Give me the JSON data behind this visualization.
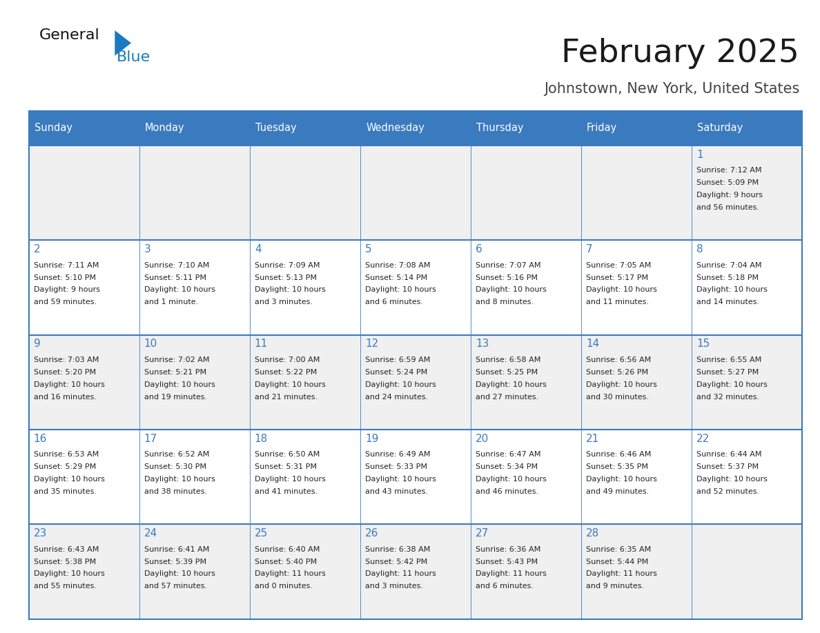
{
  "title": "February 2025",
  "subtitle": "Johnstown, New York, United States",
  "header_bg": "#3a7abf",
  "header_text_color": "#ffffff",
  "cell_bg_light": "#f0f0f0",
  "cell_bg_white": "#ffffff",
  "border_color": "#3a7abf",
  "day_number_color": "#3a7abf",
  "info_text_color": "#222222",
  "title_color": "#1a1a1a",
  "subtitle_color": "#444444",
  "days_of_week": [
    "Sunday",
    "Monday",
    "Tuesday",
    "Wednesday",
    "Thursday",
    "Friday",
    "Saturday"
  ],
  "weeks": [
    [
      {
        "day": null,
        "info": ""
      },
      {
        "day": null,
        "info": ""
      },
      {
        "day": null,
        "info": ""
      },
      {
        "day": null,
        "info": ""
      },
      {
        "day": null,
        "info": ""
      },
      {
        "day": null,
        "info": ""
      },
      {
        "day": 1,
        "info": "Sunrise: 7:12 AM\nSunset: 5:09 PM\nDaylight: 9 hours\nand 56 minutes."
      }
    ],
    [
      {
        "day": 2,
        "info": "Sunrise: 7:11 AM\nSunset: 5:10 PM\nDaylight: 9 hours\nand 59 minutes."
      },
      {
        "day": 3,
        "info": "Sunrise: 7:10 AM\nSunset: 5:11 PM\nDaylight: 10 hours\nand 1 minute."
      },
      {
        "day": 4,
        "info": "Sunrise: 7:09 AM\nSunset: 5:13 PM\nDaylight: 10 hours\nand 3 minutes."
      },
      {
        "day": 5,
        "info": "Sunrise: 7:08 AM\nSunset: 5:14 PM\nDaylight: 10 hours\nand 6 minutes."
      },
      {
        "day": 6,
        "info": "Sunrise: 7:07 AM\nSunset: 5:16 PM\nDaylight: 10 hours\nand 8 minutes."
      },
      {
        "day": 7,
        "info": "Sunrise: 7:05 AM\nSunset: 5:17 PM\nDaylight: 10 hours\nand 11 minutes."
      },
      {
        "day": 8,
        "info": "Sunrise: 7:04 AM\nSunset: 5:18 PM\nDaylight: 10 hours\nand 14 minutes."
      }
    ],
    [
      {
        "day": 9,
        "info": "Sunrise: 7:03 AM\nSunset: 5:20 PM\nDaylight: 10 hours\nand 16 minutes."
      },
      {
        "day": 10,
        "info": "Sunrise: 7:02 AM\nSunset: 5:21 PM\nDaylight: 10 hours\nand 19 minutes."
      },
      {
        "day": 11,
        "info": "Sunrise: 7:00 AM\nSunset: 5:22 PM\nDaylight: 10 hours\nand 21 minutes."
      },
      {
        "day": 12,
        "info": "Sunrise: 6:59 AM\nSunset: 5:24 PM\nDaylight: 10 hours\nand 24 minutes."
      },
      {
        "day": 13,
        "info": "Sunrise: 6:58 AM\nSunset: 5:25 PM\nDaylight: 10 hours\nand 27 minutes."
      },
      {
        "day": 14,
        "info": "Sunrise: 6:56 AM\nSunset: 5:26 PM\nDaylight: 10 hours\nand 30 minutes."
      },
      {
        "day": 15,
        "info": "Sunrise: 6:55 AM\nSunset: 5:27 PM\nDaylight: 10 hours\nand 32 minutes."
      }
    ],
    [
      {
        "day": 16,
        "info": "Sunrise: 6:53 AM\nSunset: 5:29 PM\nDaylight: 10 hours\nand 35 minutes."
      },
      {
        "day": 17,
        "info": "Sunrise: 6:52 AM\nSunset: 5:30 PM\nDaylight: 10 hours\nand 38 minutes."
      },
      {
        "day": 18,
        "info": "Sunrise: 6:50 AM\nSunset: 5:31 PM\nDaylight: 10 hours\nand 41 minutes."
      },
      {
        "day": 19,
        "info": "Sunrise: 6:49 AM\nSunset: 5:33 PM\nDaylight: 10 hours\nand 43 minutes."
      },
      {
        "day": 20,
        "info": "Sunrise: 6:47 AM\nSunset: 5:34 PM\nDaylight: 10 hours\nand 46 minutes."
      },
      {
        "day": 21,
        "info": "Sunrise: 6:46 AM\nSunset: 5:35 PM\nDaylight: 10 hours\nand 49 minutes."
      },
      {
        "day": 22,
        "info": "Sunrise: 6:44 AM\nSunset: 5:37 PM\nDaylight: 10 hours\nand 52 minutes."
      }
    ],
    [
      {
        "day": 23,
        "info": "Sunrise: 6:43 AM\nSunset: 5:38 PM\nDaylight: 10 hours\nand 55 minutes."
      },
      {
        "day": 24,
        "info": "Sunrise: 6:41 AM\nSunset: 5:39 PM\nDaylight: 10 hours\nand 57 minutes."
      },
      {
        "day": 25,
        "info": "Sunrise: 6:40 AM\nSunset: 5:40 PM\nDaylight: 11 hours\nand 0 minutes."
      },
      {
        "day": 26,
        "info": "Sunrise: 6:38 AM\nSunset: 5:42 PM\nDaylight: 11 hours\nand 3 minutes."
      },
      {
        "day": 27,
        "info": "Sunrise: 6:36 AM\nSunset: 5:43 PM\nDaylight: 11 hours\nand 6 minutes."
      },
      {
        "day": 28,
        "info": "Sunrise: 6:35 AM\nSunset: 5:44 PM\nDaylight: 11 hours\nand 9 minutes."
      },
      {
        "day": null,
        "info": ""
      }
    ]
  ],
  "logo_text1": "General",
  "logo_text2": "Blue",
  "logo_text1_color": "#111111",
  "logo_text2_color": "#1a7abf",
  "logo_triangle_color": "#1a7abf",
  "fig_width": 11.88,
  "fig_height": 9.18,
  "dpi": 100
}
